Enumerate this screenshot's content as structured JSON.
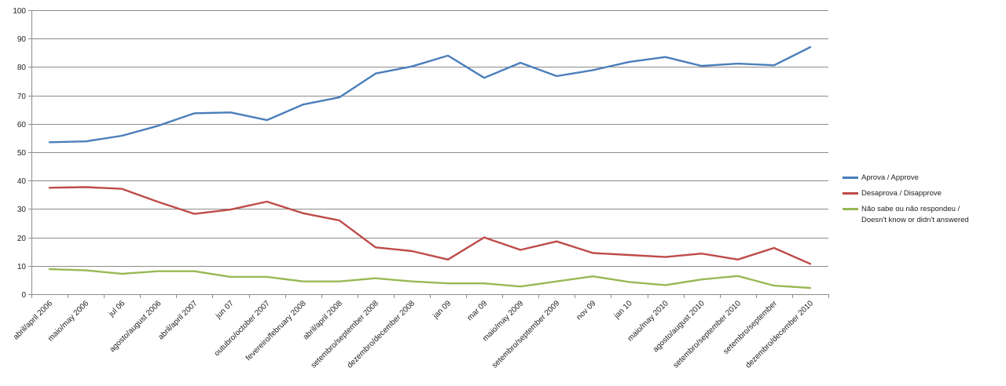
{
  "chart_data": {
    "type": "line",
    "x": [
      "abril/april 2006",
      "maio/may 2006",
      "jul 06",
      "agosto/august 2006",
      "abril/april 2007",
      "jun 07",
      "outubro/october 2007",
      "fevereiro/february 2008",
      "abril/april 2008",
      "setembro/september 2008",
      "dezembro/december 2008",
      "jan 09",
      "mar 09",
      "maio/may 2009",
      "setembro/september 2009",
      "nov 09",
      "jan 10",
      "maio/may 2010",
      "agosto/august 2010",
      "setembro/september 2010",
      "setembro/september",
      "dezembro/december 2010"
    ],
    "series": [
      {
        "name": "Aprova / Approve",
        "color": "#4a7ebb",
        "values": [
          53.5,
          53.8,
          55.8,
          59.3,
          63.7,
          64.0,
          61.3,
          66.8,
          69.3,
          77.7,
          80.2,
          84.0,
          76.2,
          81.5,
          76.8,
          78.9,
          81.8,
          83.5,
          80.4,
          81.2,
          80.6,
          87.0
        ]
      },
      {
        "name": "Desaprova / Disapprove",
        "color": "#be4b48",
        "values": [
          37.5,
          37.7,
          37.1,
          32.5,
          28.3,
          29.8,
          32.6,
          28.5,
          26.0,
          16.5,
          15.2,
          12.2,
          20.0,
          15.6,
          18.6,
          14.5,
          13.8,
          13.1,
          14.3,
          12.2,
          16.3,
          10.7
        ]
      },
      {
        "name": "Não sabe ou não respondeu / Doesn't know or didn't answered",
        "color": "#98b954",
        "values": [
          8.8,
          8.4,
          7.2,
          8.1,
          8.1,
          6.1,
          6.1,
          4.5,
          4.5,
          5.6,
          4.5,
          3.8,
          3.8,
          2.7,
          4.5,
          6.3,
          4.3,
          3.2,
          5.2,
          6.4,
          3.0,
          2.2
        ]
      }
    ],
    "yticks": [
      "0",
      "10",
      "20",
      "30",
      "40",
      "50",
      "60",
      "70",
      "80",
      "90",
      "100"
    ],
    "ylim": [
      0,
      100
    ],
    "grid": true,
    "legend_position": "right",
    "title": "",
    "xlabel": "",
    "ylabel": ""
  }
}
